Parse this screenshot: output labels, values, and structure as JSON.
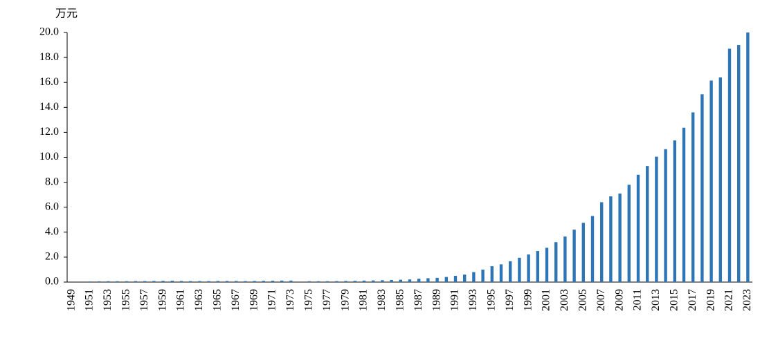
{
  "chart_data": {
    "type": "bar",
    "y_label": "万元",
    "color": "#2e75b6",
    "categories": [
      "1949",
      null,
      "1951",
      null,
      "1953",
      null,
      "1955",
      null,
      "1957",
      null,
      "1959",
      null,
      "1961",
      null,
      "1963",
      null,
      "1965",
      null,
      "1967",
      null,
      "1969",
      null,
      "1971",
      null,
      "1973",
      null,
      "1975",
      null,
      "1977",
      null,
      "1979",
      null,
      "1981",
      null,
      "1983",
      null,
      "1985",
      null,
      "1987",
      null,
      "1989",
      null,
      "1991",
      null,
      "1993",
      null,
      "1995",
      null,
      "1997",
      null,
      "1999",
      null,
      "2001",
      null,
      "2003",
      null,
      "2005",
      null,
      "2007",
      null,
      "2009",
      null,
      "2011",
      null,
      "2013",
      null,
      "2015",
      null,
      "2017",
      null,
      "2019",
      null,
      "2021",
      null,
      "2023"
    ],
    "values": [
      null,
      null,
      0.05,
      0.06,
      0.07,
      0.07,
      0.07,
      0.08,
      0.08,
      0.09,
      0.1,
      0.11,
      0.09,
      0.08,
      0.08,
      0.08,
      0.09,
      0.09,
      0.09,
      0.08,
      0.09,
      0.1,
      0.11,
      0.12,
      0.12,
      null,
      0.07,
      0.07,
      0.07,
      0.08,
      0.09,
      0.1,
      0.12,
      0.13,
      0.15,
      0.17,
      0.19,
      0.21,
      0.27,
      0.31,
      0.34,
      0.41,
      0.5,
      0.6,
      0.8,
      1.0,
      1.27,
      1.42,
      1.67,
      1.95,
      2.21,
      2.49,
      2.75,
      3.2,
      3.65,
      4.2,
      4.75,
      5.3,
      6.4,
      6.87,
      7.1,
      7.8,
      8.6,
      9.3,
      10.05,
      10.65,
      11.35,
      12.37,
      13.6,
      15.05,
      16.15,
      16.4,
      18.7,
      19.0,
      20.0
    ],
    "ylim": [
      0,
      20
    ],
    "yticks": [
      {
        "value": 0,
        "label": "0.0"
      },
      {
        "value": 2,
        "label": "2.0"
      },
      {
        "value": 4,
        "label": "4.0"
      },
      {
        "value": 6,
        "label": "6.0"
      },
      {
        "value": 8,
        "label": "8.0"
      },
      {
        "value": 10,
        "label": "10.0"
      },
      {
        "value": 12,
        "label": "12.0"
      },
      {
        "value": 14,
        "label": "14.0"
      },
      {
        "value": 16,
        "label": "16.0"
      },
      {
        "value": 18,
        "label": "18.0"
      },
      {
        "value": 20,
        "label": "20.0"
      }
    ]
  }
}
